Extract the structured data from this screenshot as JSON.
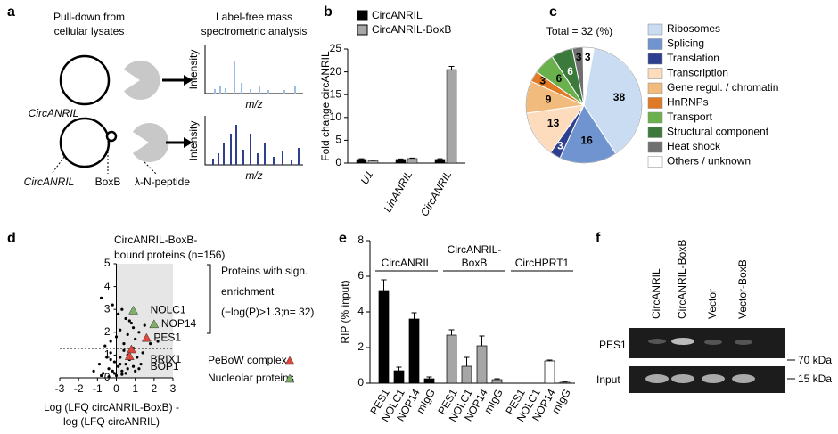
{
  "panel_labels": [
    "a",
    "b",
    "c",
    "d",
    "e",
    "f"
  ],
  "panel_a": {
    "pulldown_title": [
      "Pull-down from",
      "cellular lysates"
    ],
    "ms_title": [
      "Label-free mass",
      "spectrometric analysis"
    ],
    "circ_label_top": "CircANRIL",
    "circ_label_bottom": "CircANRIL",
    "boxb_label": "BoxB",
    "peptide_label": "λ-N-peptide",
    "y_label": "Intensity",
    "x_label": "m/z"
  },
  "panel_f": {
    "lanes": [
      "CircANRIL",
      "CircANRIL-BoxB",
      "Vector",
      "Vector-BoxB"
    ],
    "rows": [
      "PES1",
      "Input"
    ],
    "markers": [
      "70 kDa",
      "15 kDa"
    ]
  },
  "chart_data": [
    {
      "type": "bar",
      "y_label": "Fold change circANRIL",
      "categories": [
        "U1",
        "LinANRIL",
        "CircANRIL"
      ],
      "series": [
        {
          "name": "CircANRIL",
          "color": "#000000",
          "values": [
            0.8,
            0.8,
            0.8
          ],
          "errors": [
            0.15,
            0.1,
            0.15
          ]
        },
        {
          "name": "CircANRIL-BoxB",
          "color": "#a6a6a6",
          "values": [
            0.5,
            1.0,
            20.5
          ],
          "errors": [
            0.1,
            0.1,
            0.7
          ]
        }
      ],
      "ylim": [
        0,
        25
      ],
      "yticks": [
        0,
        5,
        10,
        15,
        20,
        25
      ]
    },
    {
      "type": "pie",
      "title": "Total = 32 (%)",
      "categories": [
        "Ribosomes",
        "Splicing",
        "Translation",
        "Transcription",
        "Gene regul. / chromatin",
        "HnRNPs",
        "Transport",
        "Structural component",
        "Heat shock",
        "Others / unknown"
      ],
      "values": [
        38,
        16,
        3,
        13,
        9,
        3,
        6,
        6,
        3,
        3
      ],
      "colors": [
        "#c9dcf2",
        "#7094d0",
        "#2e3f8f",
        "#fcdcbc",
        "#f2bb7e",
        "#e07a26",
        "#6ab04c",
        "#3b7a3a",
        "#707070",
        "#ffffff"
      ]
    },
    {
      "type": "scatter",
      "annotation": [
        "CircANRIL-BoxB-",
        "bound proteins (n=156)"
      ],
      "bracket_text": [
        "Proteins with sign.",
        "enrichment",
        "(−log(P)>1.3;n= 32)"
      ],
      "x_label": [
        "Log (LFQ circANRIL-BoxB) -",
        "log (LFQ circANRIL)"
      ],
      "xlim": [
        -3,
        3
      ],
      "xticks": [
        -3,
        -2,
        -1,
        0,
        1,
        2,
        3
      ],
      "ylim": [
        0,
        5
      ],
      "yticks": [
        0,
        1,
        2,
        3,
        4,
        5
      ],
      "threshold": 1.3,
      "shade_xlim": [
        0,
        3
      ],
      "points": {
        "color": "#000000",
        "x": [
          -1.2,
          -0.9,
          -0.7,
          -0.5,
          -0.4,
          -0.3,
          -0.2,
          -0.1,
          0,
          0.1,
          0.2,
          0.3,
          0.4,
          0.5,
          0.6,
          0.7,
          0.9,
          1.1,
          1.3,
          -0.6,
          -0.3,
          0,
          0.2,
          0.4,
          0.6,
          0.8,
          1.0,
          1.2,
          1.5,
          -0.8,
          -0.2,
          0.1,
          0.3,
          0.5,
          0.7,
          0.9,
          1.8,
          2.2,
          -0.1,
          0.3,
          0.6,
          1.0,
          1.4,
          -0.8,
          -0.4,
          0.5,
          0.9,
          1.2,
          0.2,
          -0.3
        ],
        "y": [
          0.3,
          0.6,
          0.2,
          0.9,
          0.4,
          1.1,
          0.3,
          0.7,
          0.1,
          0.5,
          0.9,
          0.3,
          1.2,
          0.6,
          0.4,
          0.8,
          0.5,
          0.9,
          0.6,
          1.4,
          1.6,
          1.8,
          2.1,
          1.5,
          1.9,
          2.4,
          1.7,
          2.0,
          2.3,
          3.5,
          3.2,
          2.8,
          3.0,
          2.6,
          2.5,
          2.2,
          1.5,
          1.6,
          0.2,
          0.15,
          1.0,
          0.3,
          1.1,
          0.1,
          0.05,
          0.2,
          1.3,
          0.4,
          0.6,
          0.8
        ]
      },
      "series": [
        {
          "name": "PeBoW complex",
          "color": "#e0463a",
          "labels": [
            "PES1",
            "BRIX1",
            "BOP1"
          ],
          "x": [
            1.6,
            0.8,
            0.7
          ],
          "y": [
            1.75,
            1.25,
            0.95
          ]
        },
        {
          "name": "Nucleolar proteins",
          "color": "#7fb069",
          "labels": [
            "NOLC1",
            "NOP14"
          ],
          "x": [
            0.9,
            2.0
          ],
          "y": [
            2.95,
            2.35
          ]
        }
      ]
    },
    {
      "type": "grouped_bar",
      "y_label": "RIP (% input)",
      "categories": [
        "PES1",
        "NOLC1",
        "NOP14",
        "mIgG"
      ],
      "series": [
        {
          "name": [
            "CircANRIL"
          ],
          "color": "#000000",
          "values": [
            5.2,
            0.7,
            3.6,
            0.25
          ],
          "errors": [
            0.6,
            0.2,
            0.35,
            0.1
          ]
        },
        {
          "name": [
            "CircANRIL-",
            "BoxB"
          ],
          "color": "#a6a6a6",
          "values": [
            2.7,
            0.95,
            2.1,
            0.2
          ],
          "errors": [
            0.3,
            0.5,
            0.55,
            0.05
          ]
        },
        {
          "name": [
            "CircHPRT1"
          ],
          "color": "#ffffff",
          "values": [
            0,
            0,
            1.25,
            0.05
          ],
          "errors": [
            0,
            0,
            0.05,
            0.02
          ]
        }
      ],
      "ylim": [
        0,
        8
      ],
      "yticks": [
        0,
        2,
        4,
        6,
        8
      ]
    }
  ]
}
